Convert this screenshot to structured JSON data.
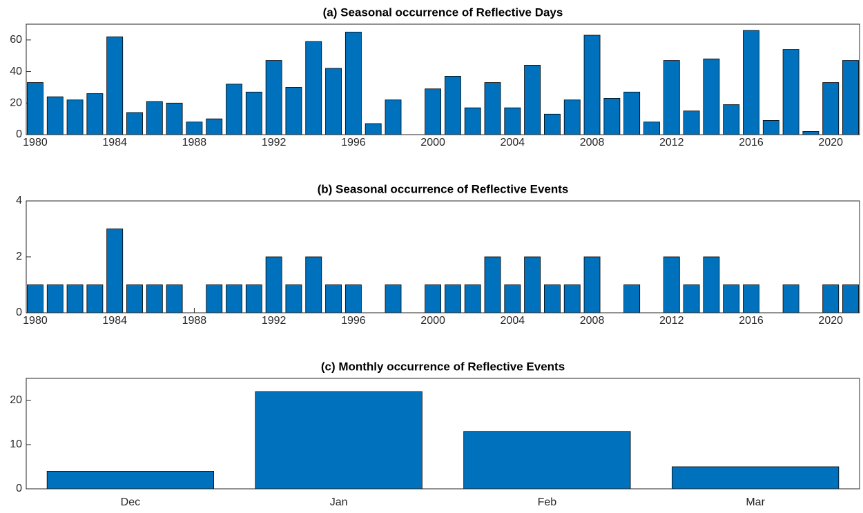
{
  "chart_data": [
    {
      "type": "bar",
      "title": "(a) Seasonal occurrence of Reflective Days",
      "x": [
        1980,
        1981,
        1982,
        1983,
        1984,
        1985,
        1986,
        1987,
        1988,
        1989,
        1990,
        1991,
        1992,
        1993,
        1994,
        1995,
        1996,
        1997,
        1998,
        1999,
        2000,
        2001,
        2002,
        2003,
        2004,
        2005,
        2006,
        2007,
        2008,
        2009,
        2010,
        2011,
        2012,
        2013,
        2014,
        2015,
        2016,
        2017,
        2018,
        2019,
        2020,
        2021
      ],
      "values": [
        33,
        24,
        22,
        26,
        62,
        14,
        21,
        20,
        8,
        10,
        32,
        27,
        47,
        30,
        59,
        42,
        65,
        7,
        22,
        0,
        29,
        37,
        17,
        33,
        17,
        44,
        13,
        22,
        63,
        23,
        27,
        8,
        47,
        15,
        48,
        19,
        66,
        9,
        54,
        2,
        33,
        47
      ],
      "color": "#0072bd",
      "xlim": [
        1979.55,
        2021.45
      ],
      "xticks": [
        1980,
        1984,
        1988,
        1992,
        1996,
        2000,
        2004,
        2008,
        2012,
        2016,
        2020
      ],
      "ylim": [
        0,
        70
      ],
      "yticks": [
        0,
        20,
        40,
        60
      ]
    },
    {
      "type": "bar",
      "title": "(b) Seasonal occurrence of Reflective Events",
      "x": [
        1980,
        1981,
        1982,
        1983,
        1984,
        1985,
        1986,
        1987,
        1988,
        1989,
        1990,
        1991,
        1992,
        1993,
        1994,
        1995,
        1996,
        1997,
        1998,
        1999,
        2000,
        2001,
        2002,
        2003,
        2004,
        2005,
        2006,
        2007,
        2008,
        2009,
        2010,
        2011,
        2012,
        2013,
        2014,
        2015,
        2016,
        2017,
        2018,
        2019,
        2020,
        2021
      ],
      "values": [
        1,
        1,
        1,
        1,
        3,
        1,
        1,
        1,
        0,
        1,
        1,
        1,
        2,
        1,
        2,
        1,
        1,
        0,
        1,
        0,
        1,
        1,
        1,
        2,
        1,
        2,
        1,
        1,
        2,
        0,
        1,
        0,
        2,
        1,
        2,
        1,
        1,
        0,
        1,
        0,
        1,
        1
      ],
      "color": "#0072bd",
      "xlim": [
        1979.55,
        2021.45
      ],
      "xticks": [
        1980,
        1984,
        1988,
        1992,
        1996,
        2000,
        2004,
        2008,
        2012,
        2016,
        2020
      ],
      "ylim": [
        0,
        4
      ],
      "yticks": [
        0,
        2,
        4
      ]
    },
    {
      "type": "bar",
      "title": "(c) Monthly occurrence of Reflective Events",
      "categories": [
        "Dec",
        "Jan",
        "Feb",
        "Mar"
      ],
      "values": [
        4,
        22,
        13,
        5
      ],
      "color": "#0072bd",
      "ylim": [
        0,
        25
      ],
      "yticks": [
        0,
        10,
        20
      ]
    }
  ]
}
